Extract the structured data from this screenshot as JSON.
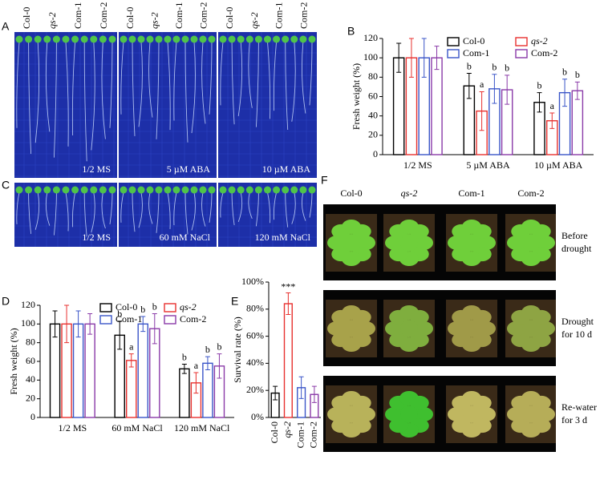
{
  "photos": {
    "A": {
      "label": "A",
      "columns": [
        "Col-0",
        "qs-2",
        "Com-1",
        "Com-2"
      ],
      "conditions": [
        "1/2 MS",
        "5 µM ABA",
        "10 µM ABA"
      ]
    },
    "C": {
      "label": "C",
      "conditions": [
        "1/2 MS",
        "60 mM NaCl",
        "120 mM NaCl"
      ]
    },
    "F": {
      "label": "F",
      "columns": [
        "Col-0",
        "qs-2",
        "Com-1",
        "Com-2"
      ],
      "rows": [
        [
          "Before",
          "drought"
        ],
        [
          "Drought",
          "for 10 d"
        ],
        [
          "Re-water",
          "for 3 d"
        ]
      ]
    }
  },
  "chart_data": [
    {
      "type": "grouped_bar",
      "label": "B",
      "ylabel": "Fresh weight (%)",
      "categories": [
        "1/2 MS",
        "5 µM ABA",
        "10 µM ABA"
      ],
      "ylim": [
        0,
        120
      ],
      "yticks": [
        0,
        20,
        40,
        60,
        80,
        100,
        120
      ],
      "legend": "top-right",
      "series": [
        {
          "name": "Col-0",
          "color": "#000000",
          "values": [
            100,
            71,
            54
          ],
          "errors": [
            15,
            13,
            10
          ],
          "letters": [
            null,
            "b",
            "b"
          ]
        },
        {
          "name": "qs-2",
          "color": "#e8312f",
          "font_style": "italic",
          "values": [
            100,
            45,
            35
          ],
          "errors": [
            20,
            20,
            8
          ],
          "letters": [
            null,
            "a",
            "a"
          ]
        },
        {
          "name": "Com-1",
          "color": "#3a55c8",
          "values": [
            100,
            68,
            64
          ],
          "errors": [
            20,
            15,
            14
          ],
          "letters": [
            null,
            "b",
            "b"
          ]
        },
        {
          "name": "Com-2",
          "color": "#8a3aa8",
          "values": [
            100,
            67,
            66
          ],
          "errors": [
            12,
            15,
            9
          ],
          "letters": [
            null,
            "b",
            "b"
          ]
        }
      ]
    },
    {
      "type": "grouped_bar",
      "label": "D",
      "ylabel": "Fresh weight (%)",
      "categories": [
        "1/2 MS",
        "60 mM NaCl",
        "120 mM NaCl"
      ],
      "ylim": [
        0,
        120
      ],
      "yticks": [
        0,
        20,
        40,
        60,
        80,
        100,
        120
      ],
      "legend": "top",
      "series": [
        {
          "name": "Col-0",
          "color": "#000000",
          "values": [
            100,
            88,
            52
          ],
          "errors": [
            14,
            15,
            5
          ],
          "letters": [
            null,
            "b",
            "b"
          ]
        },
        {
          "name": "qs-2",
          "color": "#e8312f",
          "font_style": "italic",
          "values": [
            100,
            61,
            37
          ],
          "errors": [
            20,
            7,
            11
          ],
          "letters": [
            null,
            "a",
            "a"
          ]
        },
        {
          "name": "Com-1",
          "color": "#3a55c8",
          "values": [
            100,
            100,
            58
          ],
          "errors": [
            14,
            8,
            7
          ],
          "letters": [
            null,
            "b",
            "b"
          ]
        },
        {
          "name": "Com-2",
          "color": "#8a3aa8",
          "values": [
            100,
            95,
            55
          ],
          "errors": [
            11,
            16,
            13
          ],
          "letters": [
            null,
            "b",
            "b"
          ]
        }
      ]
    },
    {
      "type": "bar",
      "label": "E",
      "ylabel": "Survival rate (%)",
      "categories": [
        "Col-0",
        "qs-2",
        "Com-1",
        "Com-2"
      ],
      "values": [
        18,
        84,
        22,
        17
      ],
      "errors": [
        5,
        8,
        8,
        6
      ],
      "colors": [
        "#000000",
        "#e8312f",
        "#3a55c8",
        "#8a3aa8"
      ],
      "annotations": [
        null,
        "***",
        null,
        null
      ],
      "ylim": [
        0,
        100
      ],
      "yticks": [
        {
          "value": 0,
          "label": "0%"
        },
        {
          "value": 20,
          "label": "20%"
        },
        {
          "value": 40,
          "label": "40%"
        },
        {
          "value": 60,
          "label": "60%"
        },
        {
          "value": 80,
          "label": "80%"
        },
        {
          "value": 100,
          "label": "100%"
        }
      ]
    }
  ]
}
